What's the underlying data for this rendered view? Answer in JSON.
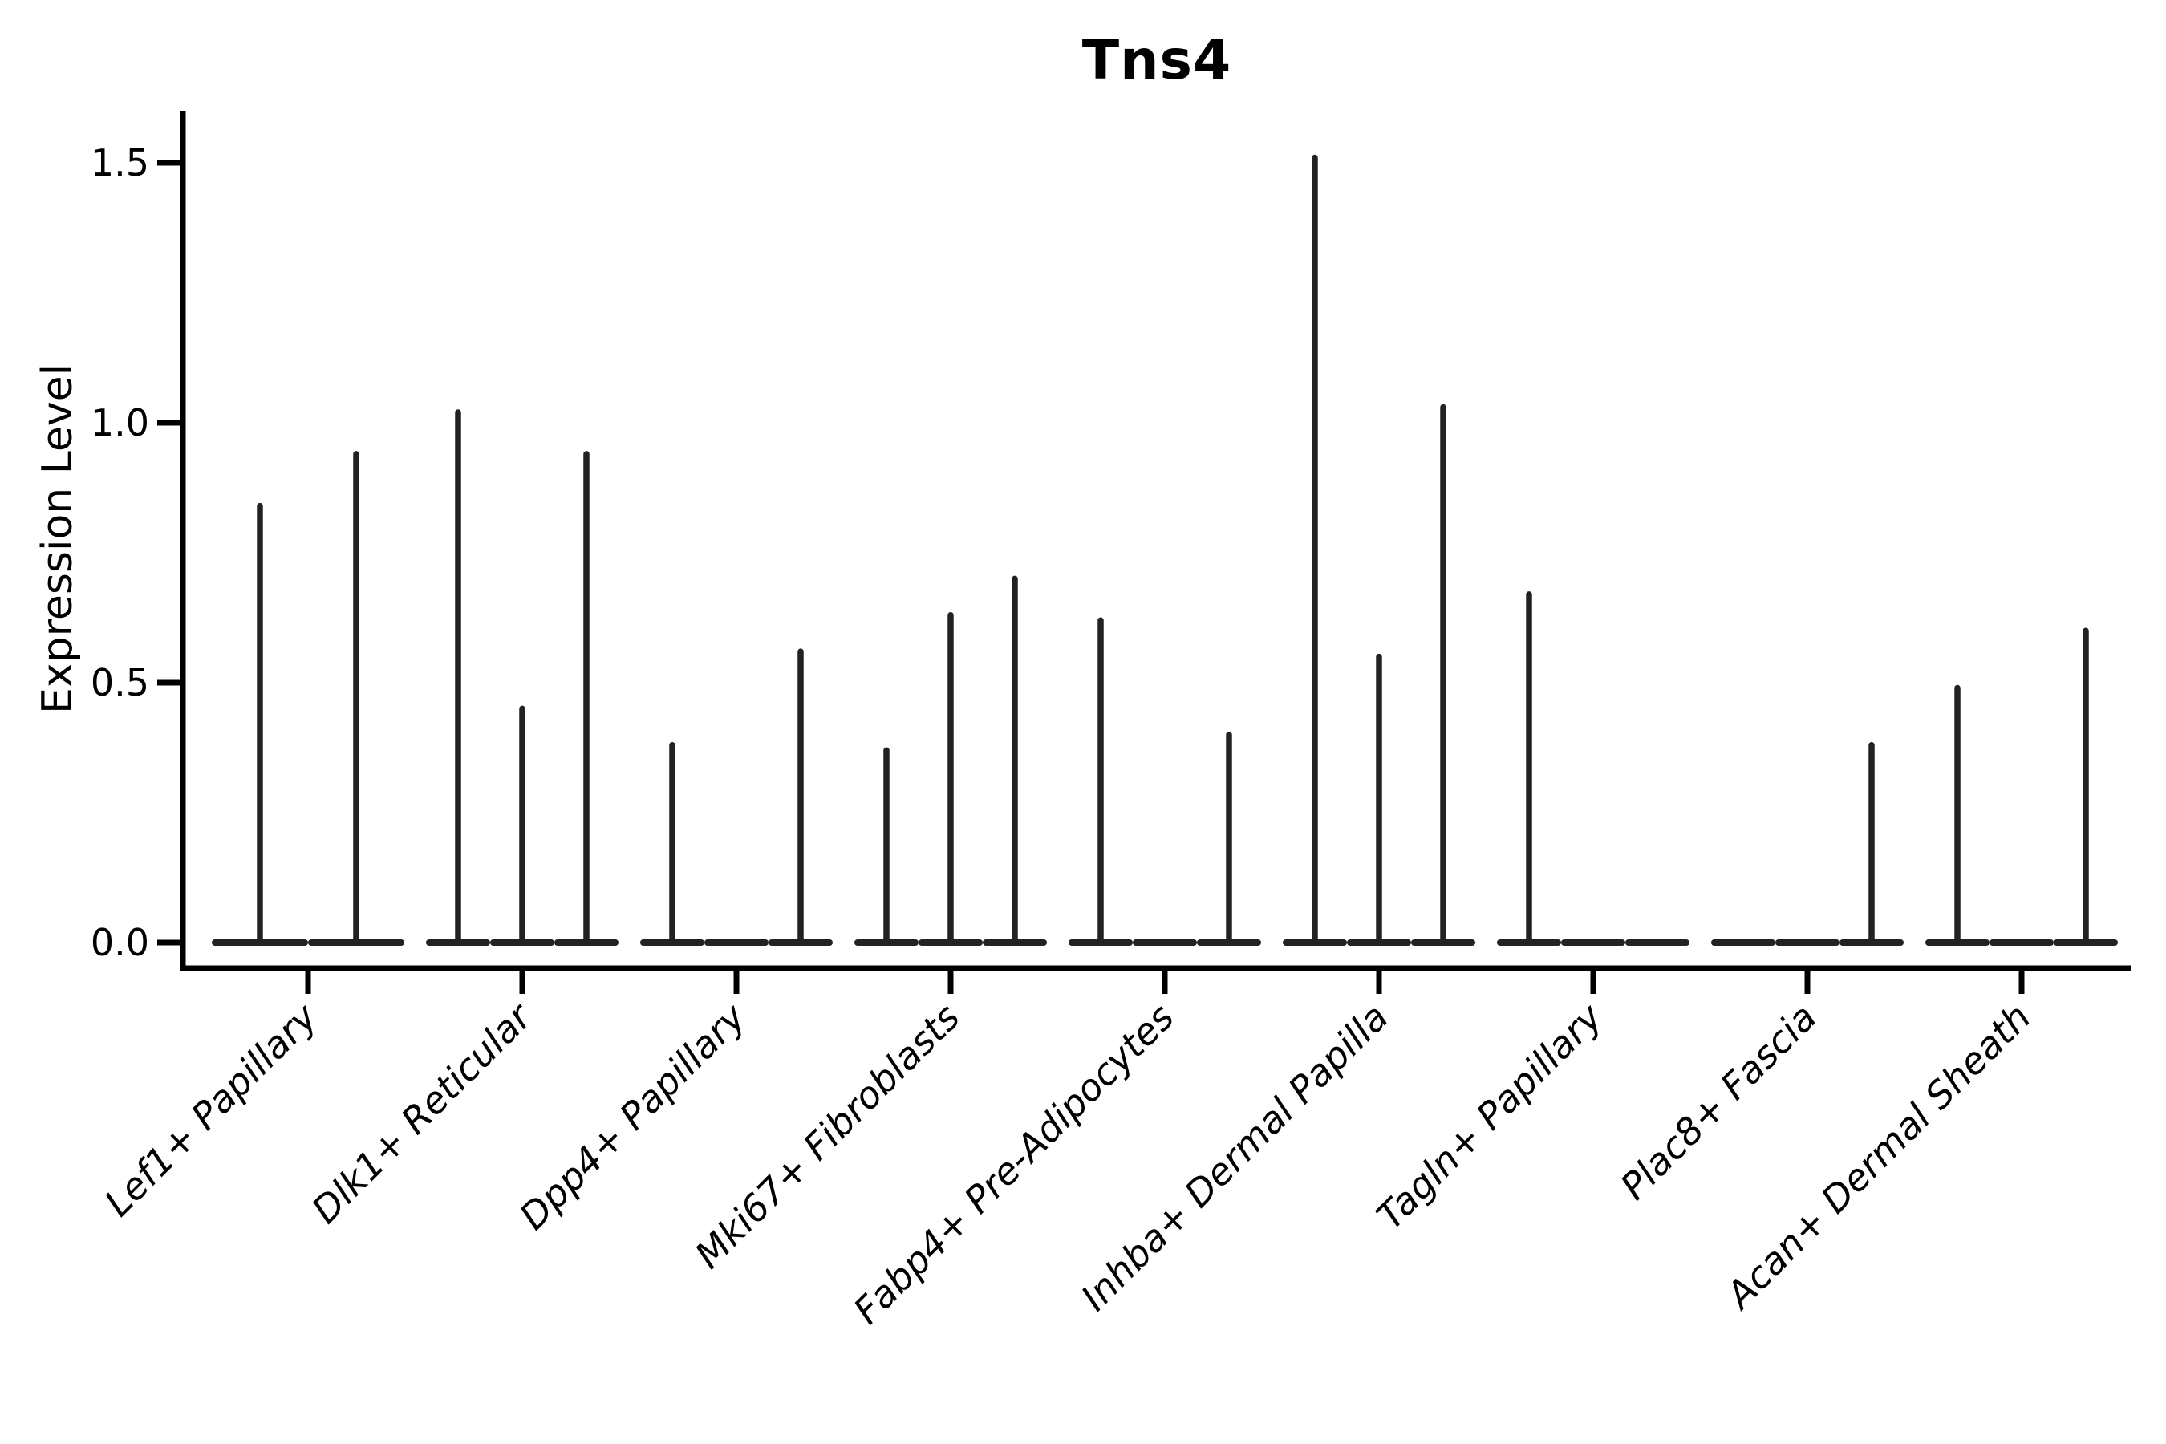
{
  "chart_data": {
    "type": "violin",
    "title": "Tns4",
    "ylabel": "Expression Level",
    "xlabel": "",
    "yticks": [
      "0.0",
      "0.5",
      "1.0",
      "1.5"
    ],
    "ytick_values": [
      0,
      0.5,
      1.0,
      1.5
    ],
    "ylim": [
      0,
      1.6
    ],
    "grid": false,
    "legend": "none",
    "categories": [
      "Lef1+ Papillary",
      "Dlk1+ Reticular",
      "Dpp4+ Papillary",
      "Mki67+ Fibroblasts",
      "Fabp4+ Pre-Adipocytes",
      "Inhba+ Dermal Papilla",
      "Tagln+ Papillary",
      "Plac8+ Fascia",
      "Acan+ Dermal Sheath"
    ],
    "groups": [
      {
        "category": "Lef1+ Papillary",
        "violin_max": [
          0.84,
          0.94
        ]
      },
      {
        "category": "Dlk1+ Reticular",
        "violin_max": [
          1.02,
          0.45,
          0.94
        ]
      },
      {
        "category": "Dpp4+ Papillary",
        "violin_max": [
          0.38,
          0,
          0.56
        ]
      },
      {
        "category": "Mki67+ Fibroblasts",
        "violin_max": [
          0.37,
          0.63,
          0.7
        ]
      },
      {
        "category": "Fabp4+ Pre-Adipocytes",
        "violin_max": [
          0.62,
          0,
          0.4
        ]
      },
      {
        "category": "Inhba+ Dermal Papilla",
        "violin_max": [
          1.51,
          0.55,
          1.03
        ]
      },
      {
        "category": "Tagln+ Papillary",
        "violin_max": [
          0.67,
          0,
          0
        ]
      },
      {
        "category": "Plac8+ Fascia",
        "violin_max": [
          0,
          0,
          0.38
        ]
      },
      {
        "category": "Acan+ Dermal Sheath",
        "violin_max": [
          0.49,
          0,
          0.6
        ]
      }
    ],
    "colors": {
      "violin": "#222222",
      "axis": "#000000",
      "background": "#ffffff"
    }
  }
}
